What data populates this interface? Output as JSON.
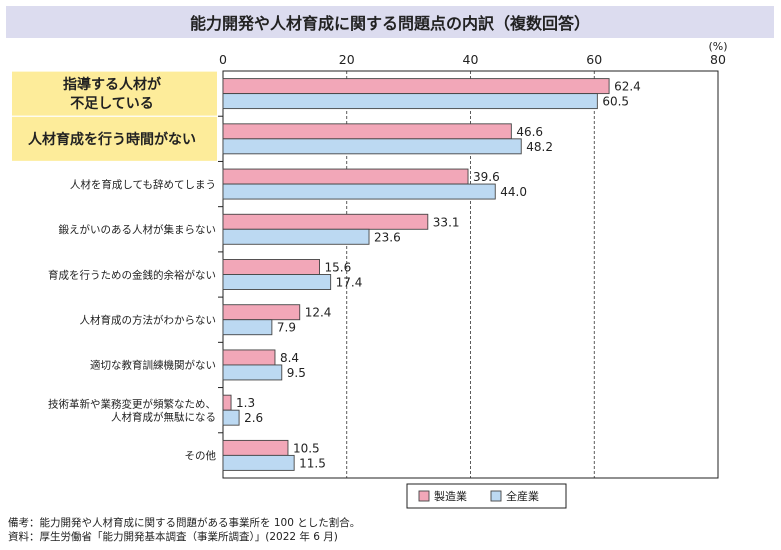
{
  "title": "能力開発や人材育成に関する問題点の内訳（複数回答）",
  "chart_data": {
    "type": "bar",
    "orientation": "horizontal",
    "title": "能力開発や人材育成に関する問題点の内訳（複数回答）",
    "unit": "(%)",
    "xlim": [
      0,
      80
    ],
    "ticks": [
      0,
      20,
      40,
      60,
      80
    ],
    "grid": "dashed vertical",
    "legend_position": "bottom-right",
    "categories": [
      {
        "lines": [
          "指導する人材が",
          "不足している"
        ],
        "highlight": true
      },
      {
        "lines": [
          "人材育成を行う時間がない"
        ],
        "highlight": true
      },
      {
        "lines": [
          "人材を育成しても辞めてしまう"
        ],
        "highlight": false
      },
      {
        "lines": [
          "鍛えがいのある人材が集まらない"
        ],
        "highlight": false
      },
      {
        "lines": [
          "育成を行うための金銭的余裕がない"
        ],
        "highlight": false
      },
      {
        "lines": [
          "人材育成の方法がわからない"
        ],
        "highlight": false
      },
      {
        "lines": [
          "適切な教育訓練機関がない"
        ],
        "highlight": false
      },
      {
        "lines": [
          "技術革新や業務変更が頻繁なため、",
          "人材育成が無駄になる"
        ],
        "highlight": false
      },
      {
        "lines": [
          "その他"
        ],
        "highlight": false
      }
    ],
    "series": [
      {
        "name": "製造業",
        "color": "#f2a7b8",
        "values": [
          62.4,
          46.6,
          39.6,
          33.1,
          15.6,
          12.4,
          8.4,
          1.3,
          10.5
        ],
        "labels": [
          "62.4",
          "46.6",
          "39.6",
          "33.1",
          "15.6",
          "12.4",
          "8.4",
          "1.3",
          "10.5"
        ]
      },
      {
        "name": "全産業",
        "color": "#bcd9f2",
        "values": [
          60.5,
          48.2,
          44.0,
          23.6,
          17.4,
          7.9,
          9.5,
          2.6,
          11.5
        ],
        "labels": [
          "60.5",
          "48.2",
          "44.0",
          "23.6",
          "17.4",
          "7.9",
          "9.5",
          "2.6",
          "11.5"
        ]
      }
    ],
    "colors": {
      "highlight_bg": "#fdec9a",
      "bar_stroke": "#444444",
      "grid": "#333333"
    }
  },
  "notes": [
    "備考：能力開発や人材育成に関する問題がある事業所を 100 とした割合。",
    "資料：厚生労働省「能力開発基本調査（事業所調査）」(2022 年 6 月)"
  ]
}
